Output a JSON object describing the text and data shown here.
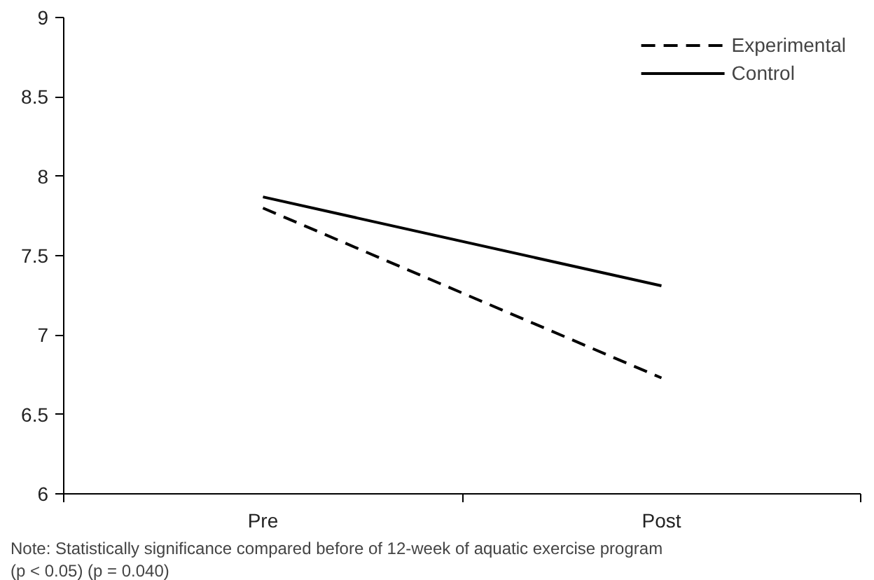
{
  "chart_data": {
    "type": "line",
    "categories": [
      "Pre",
      "Post"
    ],
    "series": [
      {
        "name": "Experimental",
        "color": "#000000",
        "values": [
          7.8,
          6.73
        ],
        "line_style": "dashed"
      },
      {
        "name": "Control",
        "color": "#000000",
        "values": [
          7.87,
          7.31
        ],
        "line_style": "solid"
      }
    ],
    "ylim": [
      6,
      9
    ],
    "yticks": [
      6,
      6.5,
      7,
      7.5,
      8,
      8.5,
      9
    ],
    "grid": false,
    "legend": "top right",
    "marker": "none",
    "annotations": [
      "Note: Statistically significance compared before of 12-week of aquatic exercise program",
      "(p < 0.05) (p = 0.040)"
    ]
  }
}
